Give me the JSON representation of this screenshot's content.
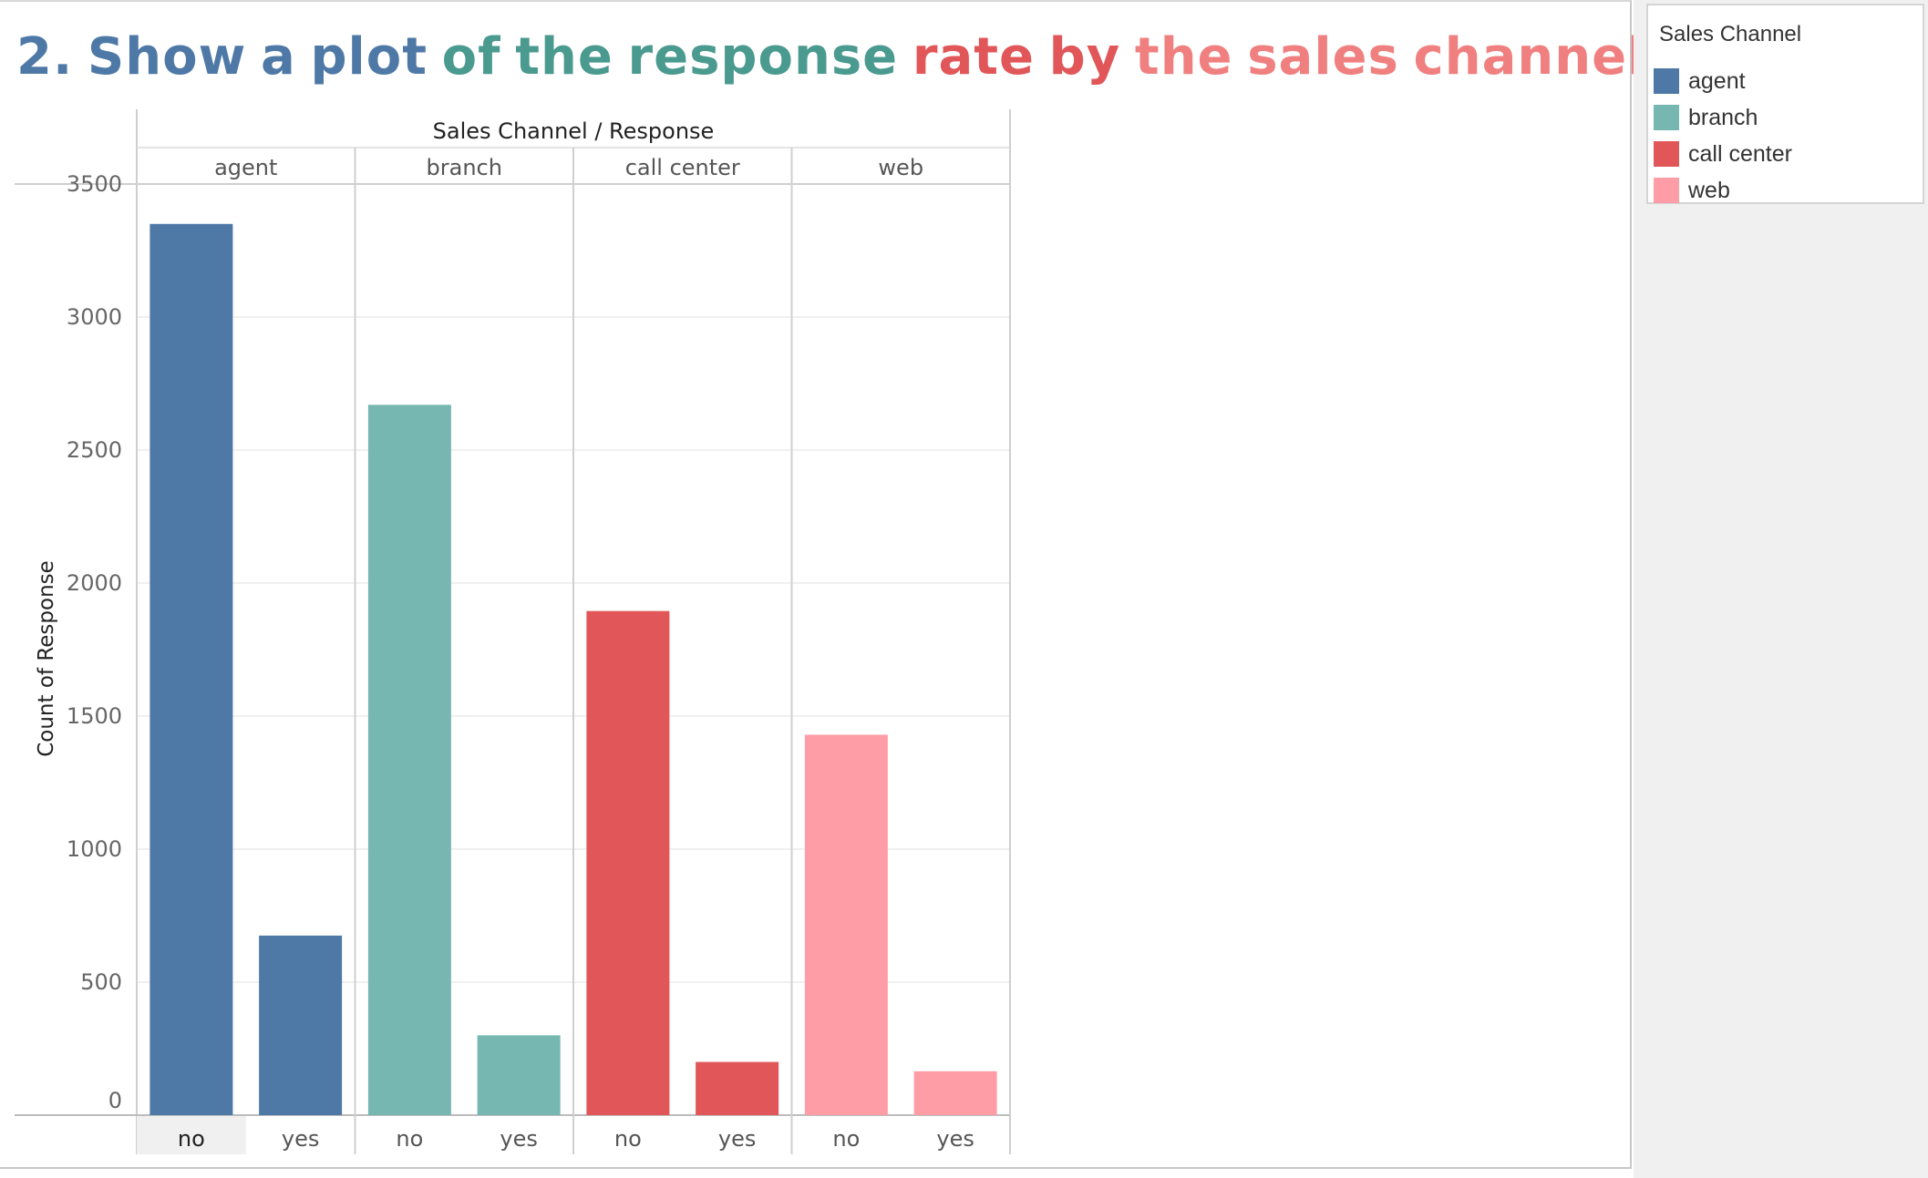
{
  "title_segments": [
    {
      "text": "2.",
      "color": "#4e79a7"
    },
    {
      "text": "Show",
      "color": "#4e79a7"
    },
    {
      "text": "a",
      "color": "#4e79a7"
    },
    {
      "text": "plot",
      "color": "#4e79a7"
    },
    {
      "text": "of",
      "color": "#4a9a8f"
    },
    {
      "text": "the",
      "color": "#4a9a8f"
    },
    {
      "text": "response",
      "color": "#4a9a8f"
    },
    {
      "text": "rate",
      "color": "#e15759"
    },
    {
      "text": "by",
      "color": "#e15759"
    },
    {
      "text": "the",
      "color": "#f08080"
    },
    {
      "text": "sales",
      "color": "#f08080"
    },
    {
      "text": "channel.",
      "color": "#f08080"
    }
  ],
  "legend": {
    "title": "Sales Channel",
    "items": [
      {
        "label": "agent",
        "color": "#4e79a7"
      },
      {
        "label": "branch",
        "color": "#76b7b2"
      },
      {
        "label": "call center",
        "color": "#e15759"
      },
      {
        "label": "web",
        "color": "#ff9da7"
      }
    ]
  },
  "chart_data": {
    "type": "bar",
    "header": "Sales Channel / Response",
    "ylabel": "Count of Response",
    "ylim": [
      0,
      3500
    ],
    "yticks": [
      0,
      500,
      1000,
      1500,
      2000,
      2500,
      3000,
      3500
    ],
    "grid": true,
    "legend_position": "top-right",
    "groups": [
      "agent",
      "branch",
      "call center",
      "web"
    ],
    "categories": [
      "no",
      "yes"
    ],
    "series": [
      {
        "name": "agent",
        "color": "#4e79a7",
        "values": [
          3350,
          675
        ]
      },
      {
        "name": "branch",
        "color": "#76b7b2",
        "values": [
          2670,
          300
        ]
      },
      {
        "name": "call center",
        "color": "#e15759",
        "values": [
          1895,
          200
        ]
      },
      {
        "name": "web",
        "color": "#ff9da7",
        "values": [
          1430,
          165
        ]
      }
    ],
    "highlighted_tick": {
      "group": "agent",
      "category": "no"
    }
  }
}
